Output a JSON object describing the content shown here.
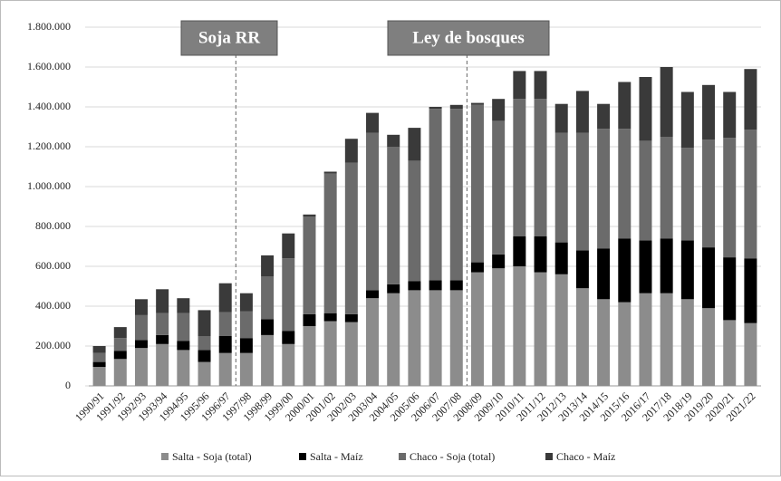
{
  "chart_data": {
    "type": "stacked-bar",
    "categories": [
      "1990/91",
      "1991/92",
      "1992/93",
      "1993/94",
      "1994/95",
      "1995/96",
      "1996/97",
      "1997/98",
      "1998/99",
      "1999/00",
      "2000/01",
      "2001/02",
      "2002/03",
      "2003/04",
      "2004/05",
      "2005/06",
      "2006/07",
      "2007/08",
      "2008/09",
      "2009/10",
      "2010/11",
      "2011/12",
      "2012/13",
      "2013/14",
      "2014/15",
      "2015/16",
      "2016/17",
      "2017/18",
      "2018/19",
      "2019/20",
      "2020/21",
      "2021/22"
    ],
    "series": [
      {
        "name": "Salta - Soja (total)",
        "color": "#8c8c8c",
        "values": [
          95000,
          135000,
          190000,
          210000,
          180000,
          120000,
          165000,
          165000,
          255000,
          210000,
          300000,
          325000,
          320000,
          440000,
          465000,
          480000,
          480000,
          480000,
          570000,
          590000,
          600000,
          570000,
          560000,
          490000,
          435000,
          420000,
          465000,
          465000,
          435000,
          390000,
          330000,
          315000
        ]
      },
      {
        "name": "Salta - Maíz",
        "color": "#000000",
        "values": [
          25000,
          40000,
          40000,
          45000,
          45000,
          60000,
          85000,
          75000,
          80000,
          65000,
          60000,
          40000,
          40000,
          40000,
          45000,
          45000,
          50000,
          50000,
          50000,
          70000,
          150000,
          180000,
          160000,
          190000,
          255000,
          320000,
          265000,
          275000,
          295000,
          305000,
          315000,
          325000
        ]
      },
      {
        "name": "Chaco - Soja (total)",
        "color": "#6b6b6b",
        "values": [
          45000,
          65000,
          125000,
          110000,
          140000,
          70000,
          120000,
          135000,
          215000,
          365000,
          490000,
          700000,
          760000,
          790000,
          690000,
          605000,
          860000,
          860000,
          790000,
          670000,
          690000,
          690000,
          550000,
          590000,
          600000,
          550000,
          500000,
          510000,
          465000,
          540000,
          600000,
          645000
        ]
      },
      {
        "name": "Chaco - Maíz",
        "color": "#3a3a3a",
        "values": [
          35000,
          55000,
          80000,
          120000,
          75000,
          130000,
          145000,
          90000,
          105000,
          125000,
          10000,
          10000,
          120000,
          100000,
          60000,
          165000,
          10000,
          20000,
          10000,
          110000,
          140000,
          140000,
          145000,
          210000,
          125000,
          235000,
          320000,
          350000,
          280000,
          275000,
          230000,
          305000
        ]
      }
    ],
    "ylim": [
      0,
      1800000
    ],
    "yticks": [
      0,
      {
        "value": 200000,
        "label": "200.000"
      },
      {
        "value": 400000,
        "label": "400.000"
      },
      {
        "value": 600000,
        "label": "600.000"
      },
      {
        "value": 800000,
        "label": "800.000"
      },
      {
        "value": 1000000,
        "label": "1.000.000"
      },
      {
        "value": 1200000,
        "label": "1.200.000"
      },
      {
        "value": 1400000,
        "label": "1.400.000"
      },
      {
        "value": 1600000,
        "label": "1.600.000"
      },
      {
        "value": 1800000,
        "label": "1.800.000"
      }
    ],
    "grid": true,
    "annotations": [
      "Soja RR",
      "Ley de bosques"
    ],
    "legend": "bottom"
  }
}
